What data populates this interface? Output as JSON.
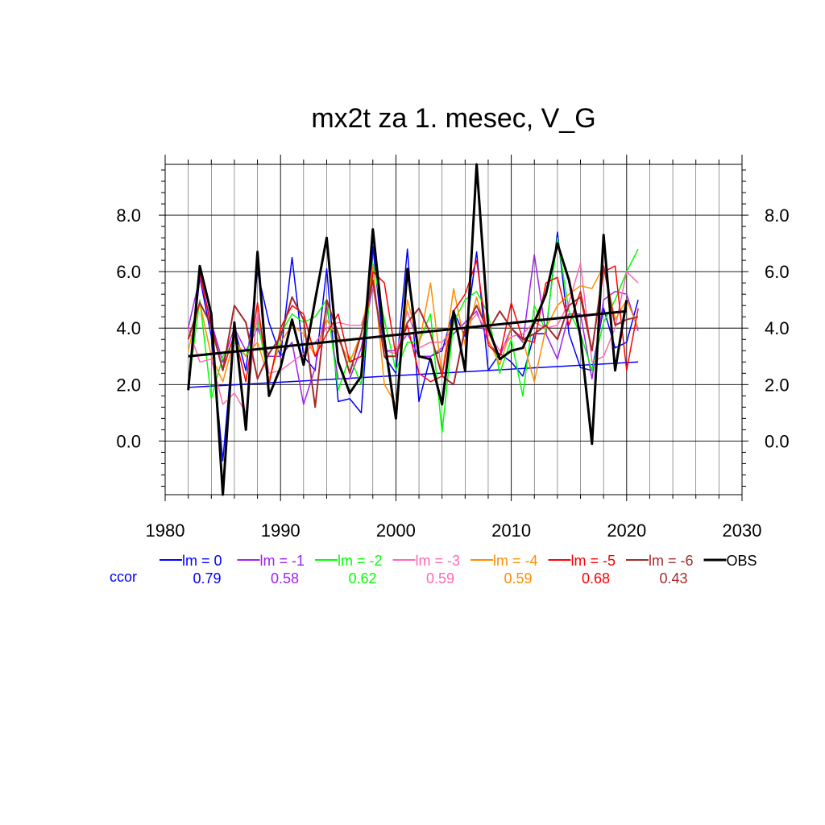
{
  "chart_data": {
    "type": "line",
    "title": "mx2t za 1. mesec, V_G",
    "xlim": [
      1980,
      2030
    ],
    "ylim": [
      -1.9,
      9.8
    ],
    "x_ticks": [
      1980,
      1990,
      2000,
      2010,
      2020,
      2030
    ],
    "x_tick_labels": [
      "1980",
      "1990",
      "2000",
      "2010",
      "2020",
      "2030"
    ],
    "y_ticks": [
      0,
      2,
      4,
      6,
      8
    ],
    "y_tick_labels": [
      "0.0",
      "2.0",
      "4.0",
      "6.0",
      "8.0"
    ],
    "grid": true,
    "x": [
      1982,
      1983,
      1984,
      1985,
      1986,
      1987,
      1988,
      1989,
      1990,
      1991,
      1992,
      1993,
      1994,
      1995,
      1996,
      1997,
      1998,
      1999,
      2000,
      2001,
      2002,
      2003,
      2004,
      2005,
      2006,
      2007,
      2008,
      2009,
      2010,
      2011,
      2012,
      2013,
      2014,
      2015,
      2016,
      2017,
      2018,
      2019,
      2020,
      2021
    ],
    "series": [
      {
        "name": "lm = 0",
        "color": "#0000ff",
        "width": 1.5,
        "values": [
          2.0,
          5.8,
          3.7,
          -0.7,
          4.0,
          2.5,
          6.0,
          4.2,
          3.0,
          6.5,
          3.0,
          2.5,
          6.1,
          1.4,
          1.5,
          1.0,
          6.9,
          3.0,
          2.4,
          6.8,
          1.4,
          3.0,
          3.2,
          4.6,
          3.7,
          6.7,
          2.5,
          3.1,
          2.8,
          2.3,
          3.8,
          3.8,
          7.4,
          3.8,
          2.6,
          2.5,
          4.7,
          3.3,
          3.5,
          5.0
        ],
        "trend": [
          1.9,
          2.8
        ]
      },
      {
        "name": "lm = -1",
        "color": "#a020f0",
        "width": 1.5,
        "values": [
          4.0,
          5.8,
          4.2,
          2.8,
          4.0,
          3.2,
          4.0,
          3.0,
          3.0,
          3.5,
          1.3,
          2.6,
          4.8,
          2.2,
          2.2,
          3.3,
          5.5,
          3.2,
          3.2,
          3.8,
          3.0,
          3.0,
          3.3,
          3.8,
          4.2,
          4.6,
          3.5,
          3.0,
          4.0,
          3.5,
          6.6,
          3.8,
          2.9,
          4.5,
          4.5,
          2.2,
          5.0,
          5.3,
          5.2,
          3.9
        ]
      },
      {
        "name": "lm = -2",
        "color": "#00ff00",
        "width": 1.5,
        "values": [
          1.9,
          5.0,
          1.5,
          3.0,
          3.5,
          3.0,
          4.3,
          2.1,
          3.8,
          4.5,
          4.2,
          4.4,
          5.0,
          1.8,
          3.0,
          2.0,
          6.3,
          4.3,
          2.5,
          3.5,
          3.5,
          4.5,
          0.3,
          4.2,
          5.0,
          5.3,
          4.5,
          2.4,
          3.6,
          1.6,
          4.8,
          3.9,
          7.2,
          4.6,
          3.8,
          2.5,
          4.2,
          5.0,
          6.0,
          6.8
        ]
      },
      {
        "name": "lm = -3",
        "color": "#ff69b4",
        "width": 1.5,
        "values": [
          4.0,
          2.8,
          2.9,
          1.3,
          1.7,
          1.0,
          4.5,
          2.4,
          2.5,
          2.8,
          3.1,
          3.5,
          4.0,
          4.2,
          4.1,
          4.1,
          5.5,
          3.2,
          3.1,
          4.6,
          3.3,
          3.5,
          3.5,
          4.0,
          4.0,
          4.5,
          3.8,
          3.2,
          3.7,
          3.8,
          4.2,
          4.0,
          4.1,
          4.9,
          6.3,
          2.8,
          3.0,
          4.0,
          6.0,
          5.6
        ]
      },
      {
        "name": "lm = -4",
        "color": "#ff8c00",
        "width": 1.5,
        "values": [
          3.2,
          4.9,
          3.0,
          2.1,
          3.6,
          3.0,
          3.5,
          2.2,
          3.5,
          4.1,
          3.8,
          3.0,
          4.3,
          3.6,
          2.8,
          3.8,
          6.2,
          2.0,
          1.3,
          5.0,
          3.4,
          5.6,
          2.3,
          5.4,
          3.4,
          5.1,
          3.6,
          2.7,
          4.0,
          3.6,
          2.1,
          4.0,
          4.8,
          5.2,
          5.5,
          5.4,
          6.2,
          4.3,
          5.0,
          4.0
        ]
      },
      {
        "name": "lm = -5",
        "color": "#ff0000",
        "width": 1.5,
        "values": [
          2.0,
          6.0,
          4.0,
          2.5,
          3.8,
          2.1,
          4.9,
          2.0,
          4.0,
          4.8,
          4.5,
          3.0,
          3.8,
          4.5,
          2.8,
          3.0,
          6.0,
          5.6,
          3.0,
          4.1,
          2.4,
          2.1,
          2.3,
          4.6,
          5.2,
          6.4,
          3.4,
          3.0,
          4.9,
          3.6,
          3.5,
          5.6,
          5.8,
          4.1,
          5.3,
          3.2,
          6.0,
          6.2,
          2.5,
          4.7
        ]
      },
      {
        "name": "lm = -6",
        "color": "#a52a2a",
        "width": 2.0,
        "values": [
          3.6,
          4.9,
          4.1,
          2.5,
          4.8,
          4.2,
          2.2,
          3.1,
          3.7,
          5.1,
          4.3,
          1.2,
          5.0,
          3.8,
          2.4,
          3.8,
          5.7,
          3.0,
          3.0,
          4.2,
          4.7,
          3.8,
          2.3,
          2.0,
          4.0,
          4.8,
          3.9,
          4.6,
          4.0,
          3.6,
          3.8,
          4.1,
          3.6,
          4.8,
          5.1,
          3.2,
          6.2,
          4.1,
          4.3,
          4.4
        ]
      },
      {
        "name": "OBS",
        "color": "#000000",
        "width": 3.0,
        "values": [
          1.8,
          6.2,
          4.5,
          -1.9,
          4.2,
          0.4,
          6.7,
          1.6,
          2.6,
          4.3,
          2.7,
          5.0,
          7.2,
          2.8,
          1.7,
          2.3,
          7.5,
          3.6,
          0.8,
          6.1,
          3.0,
          2.9,
          1.3,
          4.6,
          2.5,
          9.8,
          4.0,
          2.9,
          3.2,
          3.3,
          4.2,
          5.2,
          7.0,
          5.7,
          3.7,
          -0.1,
          7.3,
          2.5,
          5.0,
          null
        ],
        "trend": [
          3.0,
          4.6
        ]
      }
    ],
    "ccor_label": "ccor",
    "ccor_values": [
      {
        "value": "0.79",
        "color": "#0000ff"
      },
      {
        "value": "0.58",
        "color": "#a020f0"
      },
      {
        "value": "0.62",
        "color": "#00ff00"
      },
      {
        "value": "0.59",
        "color": "#ff69b4"
      },
      {
        "value": "0.59",
        "color": "#ff8c00"
      },
      {
        "value": "0.68",
        "color": "#ff0000"
      },
      {
        "value": "0.43",
        "color": "#a52a2a"
      }
    ]
  }
}
